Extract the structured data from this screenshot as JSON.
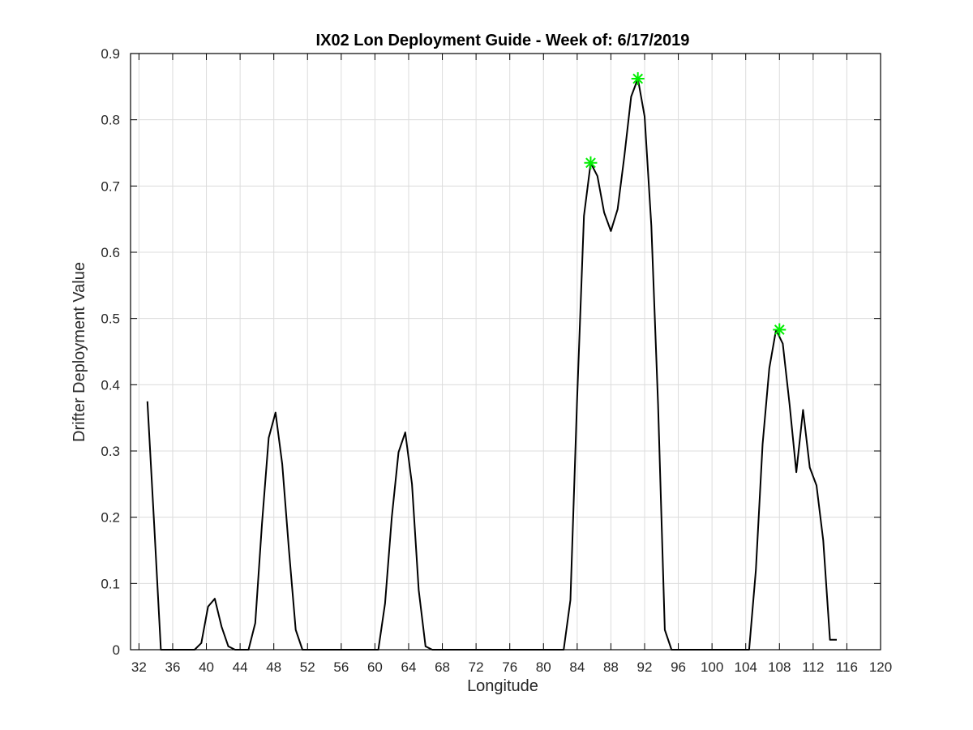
{
  "chart_data": {
    "type": "line",
    "title": "IX02 Lon Deployment Guide - Week of: 6/17/2019",
    "xlabel": "Longitude",
    "ylabel": "Drifter Deployment Value",
    "xlim": [
      31,
      120
    ],
    "ylim": [
      0,
      0.9
    ],
    "xticks": [
      32,
      36,
      40,
      44,
      48,
      52,
      56,
      60,
      64,
      68,
      72,
      76,
      80,
      84,
      88,
      92,
      96,
      100,
      104,
      108,
      112,
      116,
      120
    ],
    "yticks": [
      0,
      0.1,
      0.2,
      0.3,
      0.4,
      0.5,
      0.6,
      0.7,
      0.8,
      0.9
    ],
    "grid": true,
    "series": [
      {
        "color": "#000000",
        "style": "line",
        "x": [
          33,
          33.8,
          34.6,
          35.4,
          36.2,
          37.0,
          37.8,
          38.6,
          39.4,
          40.2,
          41.0,
          41.8,
          42.6,
          43.4,
          44.2,
          45.0,
          45.8,
          46.6,
          47.4,
          48.2,
          49.0,
          49.8,
          50.6,
          51.4,
          52.2,
          53.0,
          54,
          56,
          58,
          59.5,
          60.4,
          61.2,
          62.0,
          62.8,
          63.6,
          64.4,
          65.2,
          66.0,
          66.8,
          67.6,
          68.5,
          70,
          74,
          78,
          81.5,
          82.4,
          83.2,
          84.0,
          84.8,
          85.6,
          86.4,
          87.2,
          88.0,
          88.8,
          89.6,
          90.4,
          91.2,
          92.0,
          92.8,
          93.6,
          94.4,
          95.2,
          96.0,
          96.8,
          98,
          100,
          102,
          103.6,
          104.4,
          105.2,
          106.0,
          106.8,
          107.6,
          108.4,
          109.2,
          110.0,
          110.8,
          111.6,
          112.4,
          113.2,
          114.0,
          114.8
        ],
        "y": [
          0.375,
          0.19,
          0.0,
          0.0,
          0.0,
          0.0,
          0.0,
          0.0,
          0.01,
          0.065,
          0.077,
          0.035,
          0.005,
          0.0,
          0.0,
          0.0,
          0.04,
          0.19,
          0.32,
          0.358,
          0.28,
          0.15,
          0.03,
          0.0,
          0.0,
          0.0,
          0.0,
          0.0,
          0.0,
          0.0,
          0.0,
          0.07,
          0.2,
          0.298,
          0.328,
          0.25,
          0.09,
          0.005,
          0.0,
          0.0,
          0.0,
          0.0,
          0.0,
          0.0,
          0.0,
          0.0,
          0.075,
          0.38,
          0.655,
          0.735,
          0.715,
          0.66,
          0.632,
          0.665,
          0.745,
          0.835,
          0.862,
          0.805,
          0.64,
          0.37,
          0.03,
          0.0,
          0.0,
          0.0,
          0.0,
          0.0,
          0.0,
          0.0,
          0.0,
          0.12,
          0.31,
          0.425,
          0.483,
          0.462,
          0.37,
          0.268,
          0.362,
          0.275,
          0.248,
          0.165,
          0.015,
          0.015
        ]
      },
      {
        "color": "#00ee00",
        "style": "asterisk-marker",
        "x": [
          85.6,
          91.2,
          108.0
        ],
        "y": [
          0.735,
          0.862,
          0.483
        ]
      }
    ]
  }
}
